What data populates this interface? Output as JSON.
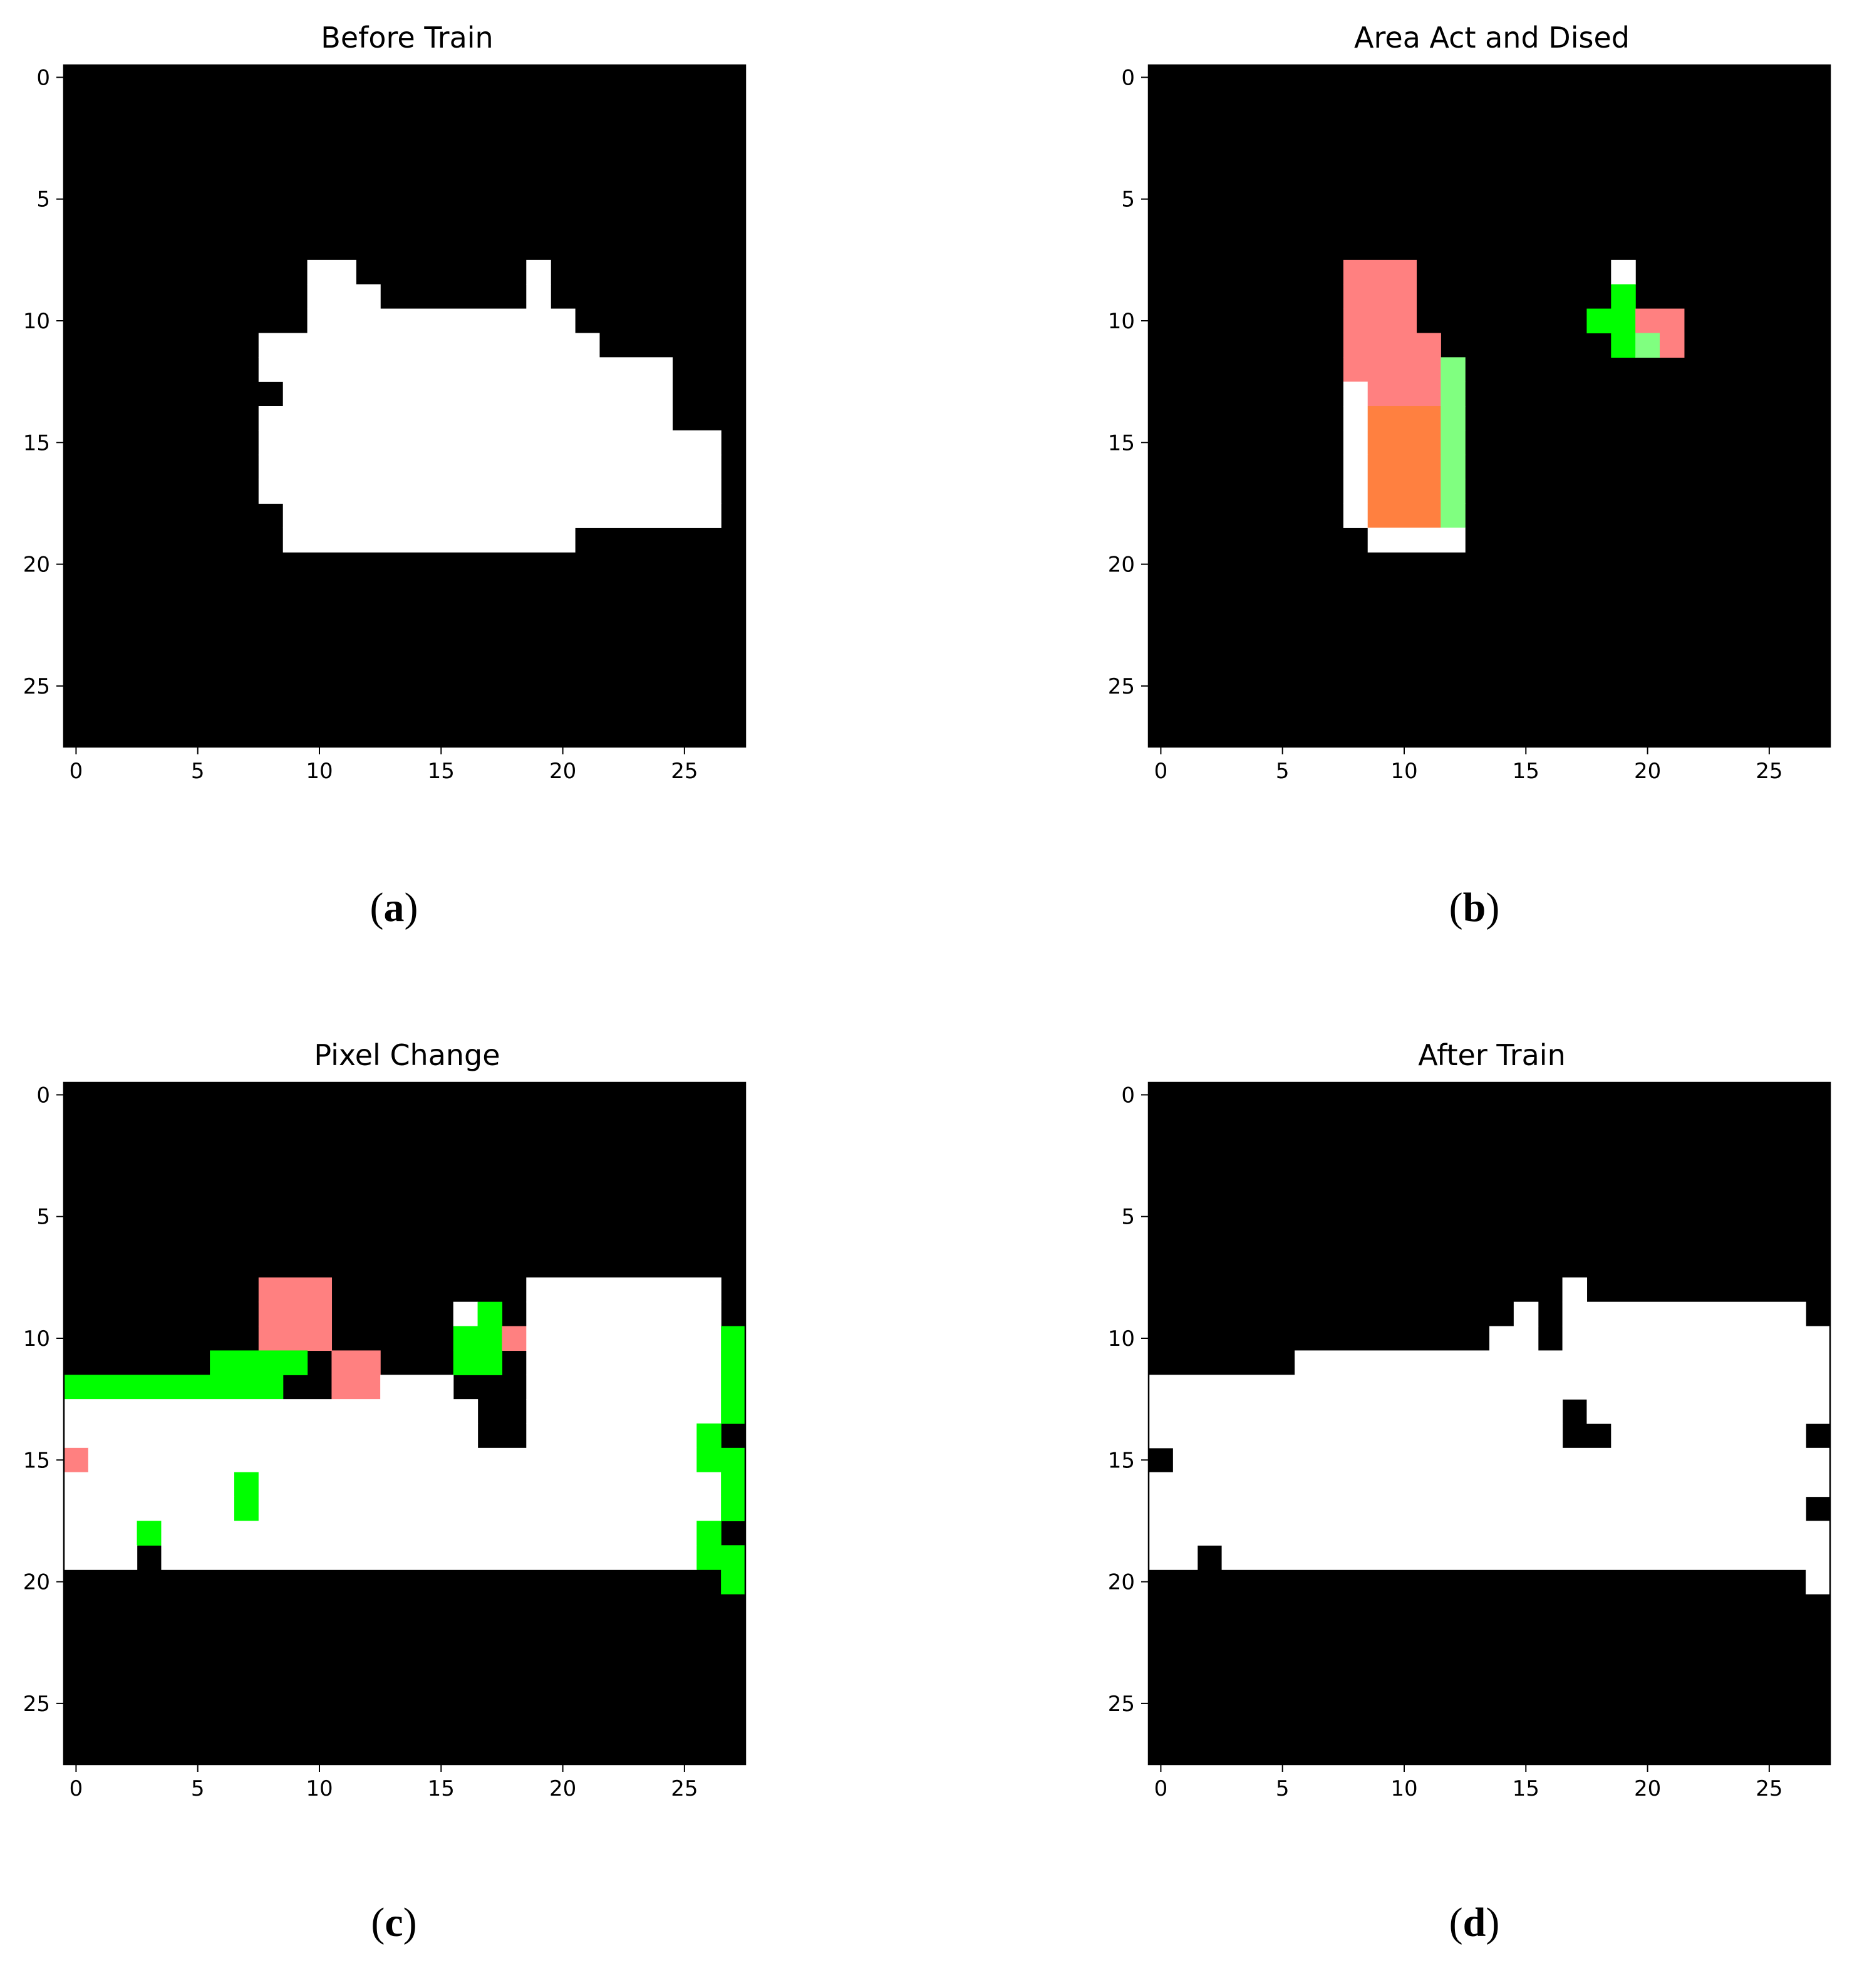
{
  "colors": {
    "0": "#000000",
    "1": "#ffffff",
    "2": "#00ff00",
    "3": "#80ff80",
    "4": "#ff8080",
    "5": "#ff8040"
  },
  "chart_data": [
    {
      "type": "heatmap",
      "title": "Before Train",
      "caption_letter": "a",
      "xticks": [
        "0",
        "5",
        "10",
        "15",
        "20",
        "25"
      ],
      "yticks": [
        "0",
        "5",
        "10",
        "15",
        "20",
        "25"
      ],
      "xlim": [
        -0.5,
        27.5
      ],
      "ylim": [
        27.5,
        -0.5
      ],
      "grid": false,
      "rows": [
        "0000000000000000000000000000",
        "0000000000000000000000000000",
        "0000000000000000000000000000",
        "0000000000000000000000000000",
        "0000000000000000000000000000",
        "0000000000000000000000000000",
        "0000000000000000000000000000",
        "0000000000000000000000000000",
        "0000000000110000000100000000",
        "0000000000111000000100000000",
        "0000000000111111111110000000",
        "0000000011111111111111000000",
        "0000000011111111111111111000",
        "0000000001111111111111111000",
        "0000000011111111111111111000",
        "0000000011111111111111111110",
        "0000000011111111111111111110",
        "0000000011111111111111111110",
        "0000000001111111111111111110",
        "0000000001111111111110000000",
        "0000000000000000000000000000",
        "0000000000000000000000000000",
        "0000000000000000000000000000",
        "0000000000000000000000000000",
        "0000000000000000000000000000",
        "0000000000000000000000000000",
        "0000000000000000000000000000",
        "0000000000000000000000000000"
      ]
    },
    {
      "type": "heatmap",
      "title": "Area Act and Dised",
      "caption_letter": "b",
      "xticks": [
        "0",
        "5",
        "10",
        "15",
        "20",
        "25"
      ],
      "yticks": [
        "0",
        "5",
        "10",
        "15",
        "20",
        "25"
      ],
      "xlim": [
        -0.5,
        27.5
      ],
      "ylim": [
        27.5,
        -0.5
      ],
      "grid": false,
      "rows": [
        "0000000000000000000000000000",
        "0000000000000000000000000000",
        "0000000000000000000000000000",
        "0000000000000000000000000000",
        "0000000000000000000000000000",
        "0000000000000000000000000000",
        "0000000000000000000000000000",
        "0000000000000000000000000000",
        "0000000044400000000100000000",
        "0000000044400000000200000000",
        "0000000044400000002244000000",
        "0000000044440000000234000000",
        "0000000044443000000000000000",
        "0000000014443000000000000000",
        "0000000015553000000000000000",
        "0000000015553000000000000000",
        "0000000015553000000000000000",
        "0000000015553000000000000000",
        "0000000015553000000000000000",
        "0000000001111000000000000000",
        "0000000000000000000000000000",
        "0000000000000000000000000000",
        "0000000000000000000000000000",
        "0000000000000000000000000000",
        "0000000000000000000000000000",
        "0000000000000000000000000000",
        "0000000000000000000000000000",
        "0000000000000000000000000000"
      ]
    },
    {
      "type": "heatmap",
      "title": "Pixel Change",
      "caption_letter": "c",
      "xticks": [
        "0",
        "5",
        "10",
        "15",
        "20",
        "25"
      ],
      "yticks": [
        "0",
        "5",
        "10",
        "15",
        "20",
        "25"
      ],
      "xlim": [
        -0.5,
        27.5
      ],
      "ylim": [
        27.5,
        -0.5
      ],
      "grid": false,
      "rows": [
        "0000000000000000000000000000",
        "0000000000000000000000000000",
        "0000000000000000000000000000",
        "0000000000000000000000000000",
        "0000000000000000000000000000",
        "0000000000000000000000000000",
        "0000000000000000000000000000",
        "0000000000000000000000000000",
        "0000000044400000000111111110",
        "0000000044400000120111111110",
        "0000000044400000224111111112",
        "0000002222044000220111111112",
        "2222222220044111000111111112",
        "1111111111111111100111111112",
        "1111111111111111100111111120",
        "4111111111111111111111111122",
        "1111111211111111111111111112",
        "1111111211111111111111111112",
        "1112111111111111111111111120",
        "1110111111111111111111111122",
        "0000000000000000000000000002",
        "0000000000000000000000000000",
        "0000000000000000000000000000",
        "0000000000000000000000000000",
        "0000000000000000000000000000",
        "0000000000000000000000000000",
        "0000000000000000000000000000",
        "0000000000000000000000000000"
      ]
    },
    {
      "type": "heatmap",
      "title": "After Train",
      "caption_letter": "d",
      "xticks": [
        "0",
        "5",
        "10",
        "15",
        "20",
        "25"
      ],
      "yticks": [
        "0",
        "5",
        "10",
        "15",
        "20",
        "25"
      ],
      "xlim": [
        -0.5,
        27.5
      ],
      "ylim": [
        27.5,
        -0.5
      ],
      "grid": false,
      "rows": [
        "0000000000000000000000000000",
        "0000000000000000000000000000",
        "0000000000000000000000000000",
        "0000000000000000000000000000",
        "0000000000000000000000000000",
        "0000000000000000000000000000",
        "0000000000000000000000000000",
        "0000000000000000000000000000",
        "0000000000000000010000000000",
        "0000000000000001011111111110",
        "0000000000000011011111111111",
        "0000001111111111111111111111",
        "1111111111111111111111111111",
        "1111111111111111101111111111",
        "1111111111111111100111111110",
        "0111111111111111111111111111",
        "1111111111111111111111111111",
        "1111111111111111111111111110",
        "1111111111111111111111111111",
        "1101111111111111111111111111",
        "0000000000000000000000000001",
        "0000000000000000000000000000",
        "0000000000000000000000000000",
        "0000000000000000000000000000",
        "0000000000000000000000000000",
        "0000000000000000000000000000",
        "0000000000000000000000000000",
        "0000000000000000000000000000"
      ]
    }
  ]
}
